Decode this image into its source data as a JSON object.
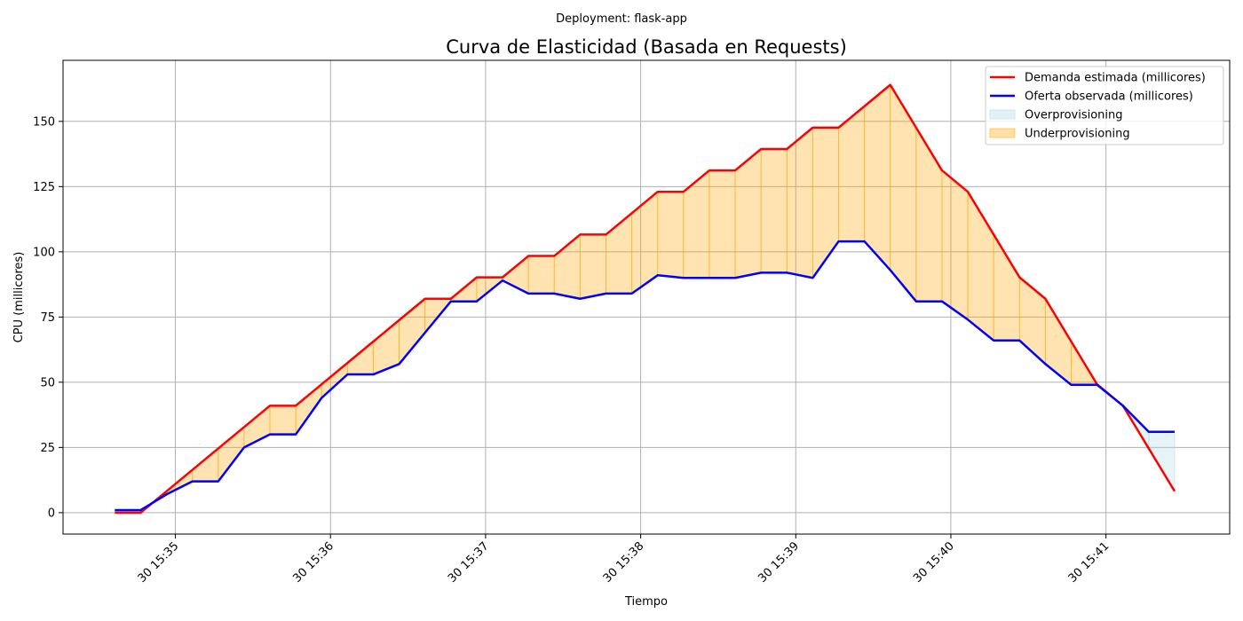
{
  "chart_data": {
    "type": "line",
    "suptitle": "Deployment: flask-app",
    "title": "Curva de Elasticidad (Basada en Requests)",
    "xlabel": "Tiempo",
    "ylabel": "CPU (millicores)",
    "x_unit": "minutes",
    "x_ticks": [
      {
        "value": 35,
        "label": "30 15:35"
      },
      {
        "value": 36,
        "label": "30 15:36"
      },
      {
        "value": 37,
        "label": "30 15:37"
      },
      {
        "value": 38,
        "label": "30 15:38"
      },
      {
        "value": 39,
        "label": "30 15:39"
      },
      {
        "value": 40,
        "label": "30 15:40"
      },
      {
        "value": 41,
        "label": "30 15:41"
      }
    ],
    "y_ticks": [
      0,
      25,
      50,
      75,
      100,
      125,
      150
    ],
    "xlim": [
      34.2756,
      41.7978
    ],
    "ylim": [
      -8.2,
      173.4
    ],
    "grid": true,
    "legend_position": "top-right",
    "x": [
      34.6095,
      34.7762,
      34.9429,
      35.1095,
      35.2762,
      35.4429,
      35.6095,
      35.7762,
      35.9429,
      36.1095,
      36.2762,
      36.4429,
      36.6095,
      36.7762,
      36.9429,
      37.1095,
      37.2762,
      37.4429,
      37.6095,
      37.7762,
      37.9429,
      38.1095,
      38.2762,
      38.4429,
      38.6095,
      38.7762,
      38.9429,
      39.1095,
      39.2762,
      39.4429,
      39.6095,
      39.7762,
      39.9429,
      40.1095,
      40.2762,
      40.4429,
      40.6095,
      40.7762,
      40.9429,
      41.1095,
      41.2762,
      41.4429
    ],
    "series": [
      {
        "name": "Demanda estimada (millicores)",
        "color": "#ff0000",
        "values": [
          0,
          0,
          8.2,
          16.4,
          24.6,
          32.8,
          41,
          41,
          49.2,
          57.4,
          65.6,
          73.8,
          82,
          82,
          90.2,
          90.2,
          98.4,
          98.4,
          106.6,
          106.6,
          114.8,
          123,
          123,
          131.2,
          131.2,
          139.4,
          139.4,
          147.6,
          147.6,
          155.8,
          164,
          147.6,
          131.2,
          123,
          106.6,
          90.2,
          82,
          65.6,
          49.2,
          41,
          24.6,
          8.2
        ]
      },
      {
        "name": "Oferta observada (millicores)",
        "color": "#0000ff",
        "values": [
          1,
          1,
          7,
          12,
          12,
          25,
          30,
          30,
          44,
          53,
          53,
          57,
          69,
          81,
          81,
          89,
          84,
          84,
          82,
          84,
          84,
          91,
          90,
          90,
          90,
          92,
          92,
          90,
          104,
          104,
          93,
          81,
          81,
          74,
          66,
          66,
          57,
          49,
          49,
          41,
          31,
          31
        ]
      }
    ],
    "fills": [
      {
        "name": "Overprovisioning",
        "color": "#add8e6",
        "condition": "oferta > demanda"
      },
      {
        "name": "Underprovisioning",
        "color": "#ffa500",
        "condition": "demanda > oferta"
      }
    ]
  }
}
